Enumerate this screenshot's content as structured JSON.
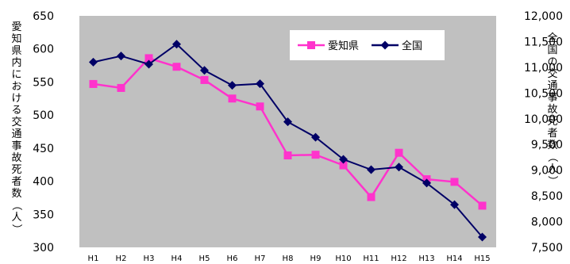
{
  "chart_data": {
    "type": "line",
    "categories": [
      "H1",
      "H2",
      "H3",
      "H4",
      "H5",
      "H6",
      "H7",
      "H8",
      "H9",
      "H10",
      "H11",
      "H12",
      "H13",
      "H14",
      "H15"
    ],
    "ylabel_left": "愛知県内における交通事故死者数（人）",
    "ylabel_right": "全国の交通事故死者数（人）",
    "ylim_left": [
      300,
      650
    ],
    "ylim_right": [
      7500,
      12000
    ],
    "yticks_left": [
      "650",
      "600",
      "550",
      "500",
      "450",
      "400",
      "350",
      "300"
    ],
    "yticks_right": [
      "12,000",
      "11,500",
      "11,000",
      "10,500",
      "10,000",
      "9,500",
      "9,000",
      "8,500",
      "8,000",
      "7,500"
    ],
    "series": [
      {
        "name": "愛知県",
        "axis": "left",
        "color": "#ff33cc",
        "marker": "square",
        "values": [
          547,
          541,
          586,
          573,
          553,
          525,
          513,
          439,
          440,
          424,
          376,
          443,
          403,
          399,
          363
        ]
      },
      {
        "name": "全国",
        "axis": "right",
        "color": "#000066",
        "marker": "diamond",
        "values": [
          11100,
          11220,
          11060,
          11450,
          10940,
          10650,
          10680,
          9940,
          9640,
          9210,
          9010,
          9060,
          8750,
          8330,
          7700
        ]
      }
    ],
    "legend": {
      "position": "top-right"
    },
    "grid": false,
    "background": "#c0c0c0"
  }
}
